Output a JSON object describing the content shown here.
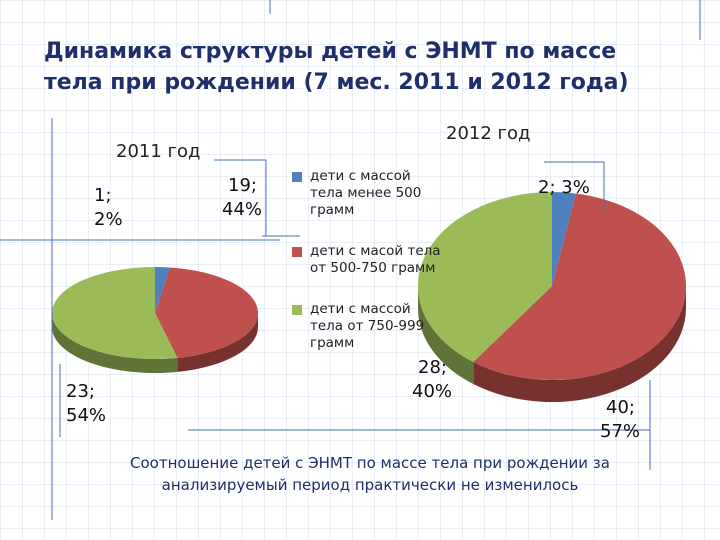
{
  "title": {
    "line1": "Динамика структуры  детей с ЭНМТ по массе",
    "line2": "тела при рождении (7 мес. 2011 и 2012 года)"
  },
  "colors": {
    "series_1": "#4f81bd",
    "series_2": "#c0504d",
    "series_3": "#9bbb59",
    "title": "#1f2f6b"
  },
  "legend": {
    "items": [
      "дети с массой тела менее 500 грамм",
      "дети с масой тела от 500-750 грамм",
      "дети с массой тела от 750-999 грамм"
    ]
  },
  "chart_data": [
    {
      "type": "pie",
      "title": "2011 год",
      "categories": [
        "дети с массой тела менее 500 грамм",
        "дети с масой тела от 500-750 грамм",
        "дети с массой тела от 750-999 грамм"
      ],
      "values": [
        1,
        19,
        23
      ],
      "percents": [
        "2%",
        "44%",
        "54%"
      ],
      "data_labels": [
        {
          "value": "1;",
          "percent": "2%"
        },
        {
          "value": "19;",
          "percent": "44%"
        },
        {
          "value": "23;",
          "percent": "54%"
        }
      ]
    },
    {
      "type": "pie",
      "title": "2012 год",
      "categories": [
        "дети с массой тела менее 500 грамм",
        "дети с масой тела от 500-750 грамм",
        "дети с массой тела от 750-999 грамм"
      ],
      "values": [
        2,
        40,
        28
      ],
      "percents": [
        "3%",
        "57%",
        "40%"
      ],
      "data_labels": [
        {
          "value": "2;",
          "percent": "3%"
        },
        {
          "value": "40;",
          "percent": "57%"
        },
        {
          "value": "28;",
          "percent": "40%"
        }
      ]
    }
  ],
  "footer": {
    "line1": "Соотношение детей с ЭНМТ по массе тела при рождении за",
    "line2": "анализируемый период практически не изменилось"
  }
}
